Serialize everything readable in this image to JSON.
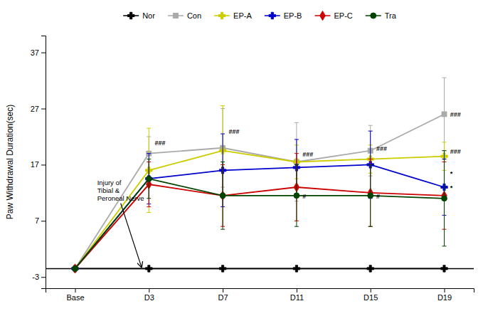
{
  "chart_data": {
    "type": "line",
    "ylabel": "Paw Withdrawal Duration(sec)",
    "categories": [
      "Base",
      "D3",
      "D7",
      "D11",
      "D15",
      "D19"
    ],
    "series": [
      {
        "name": "Nor",
        "color": "#000000",
        "marker": "cross",
        "values": [
          -1.5,
          -1.5,
          -1.5,
          -1.5,
          -1.5,
          -1.5
        ],
        "errors": [
          0.0,
          0.0,
          0.0,
          0.0,
          0.0,
          0.0
        ]
      },
      {
        "name": "Con",
        "color": "#aaaaaa",
        "marker": "square",
        "values": [
          -1.5,
          19.0,
          20.0,
          17.5,
          19.5,
          26.0
        ],
        "errors": [
          0.0,
          3.0,
          7.0,
          7.0,
          4.5,
          6.5
        ]
      },
      {
        "name": "EP-A",
        "color": "#cccc00",
        "marker": "cross",
        "values": [
          -1.5,
          16.0,
          19.5,
          17.5,
          18.0,
          18.5
        ],
        "errors": [
          0.0,
          7.5,
          8.0,
          3.0,
          2.5,
          2.5
        ]
      },
      {
        "name": "EP-B",
        "color": "#0000cc",
        "marker": "cross",
        "values": [
          -1.5,
          14.5,
          16.0,
          16.5,
          17.0,
          13.0
        ],
        "errors": [
          0.0,
          4.5,
          6.5,
          5.0,
          6.0,
          5.0
        ]
      },
      {
        "name": "EP-C",
        "color": "#cc0000",
        "marker": "diamond",
        "values": [
          -1.5,
          13.5,
          11.5,
          13.0,
          12.0,
          11.5
        ],
        "errors": [
          0.0,
          4.0,
          5.5,
          6.0,
          6.0,
          6.0
        ]
      },
      {
        "name": "Tra",
        "color": "#004400",
        "marker": "circle",
        "values": [
          -1.5,
          14.5,
          11.5,
          11.5,
          11.5,
          11.0
        ],
        "errors": [
          0.0,
          3.5,
          6.0,
          5.5,
          5.5,
          8.5
        ]
      }
    ],
    "ylim": [
      -5,
      40
    ],
    "yticks": [
      -3,
      7,
      17,
      27,
      37
    ],
    "baseline": -1.5,
    "legend": "top",
    "grid": false,
    "annotations": [
      {
        "text": "###",
        "x": 1.0,
        "y": 20.5
      },
      {
        "text": "###",
        "x": 2.0,
        "y": 22.5
      },
      {
        "text": "###",
        "x": 3.0,
        "y": 18.5
      },
      {
        "text": "#",
        "x": 3.0,
        "y": 11.0
      },
      {
        "text": "###",
        "x": 4.0,
        "y": 19.5
      },
      {
        "text": "#",
        "x": 4.0,
        "y": 11.0
      },
      {
        "text": "###",
        "x": 5.0,
        "y": 25.5
      },
      {
        "text": "###",
        "x": 5.0,
        "y": 19.0
      },
      {
        "text": "*",
        "x": 5.0,
        "y": 15.0
      },
      {
        "text": "*",
        "x": 5.0,
        "y": 12.5
      },
      {
        "text": "Injury of\nTibial &\nPeroneal Nerve",
        "x": 0.3,
        "y": 14.5,
        "arrow_x": 0.9,
        "arrow_y": -1.5
      }
    ]
  }
}
